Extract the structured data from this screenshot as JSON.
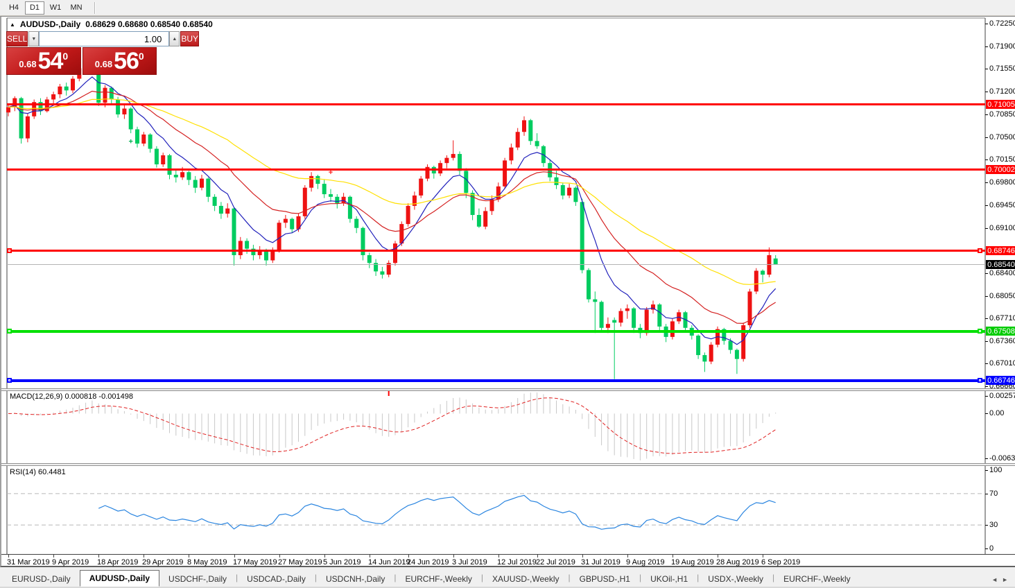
{
  "toolbar": {
    "timeframes": [
      {
        "label": "H4",
        "active": false
      },
      {
        "label": "D1",
        "active": true
      },
      {
        "label": "W1",
        "active": false
      },
      {
        "label": "MN",
        "active": false
      }
    ]
  },
  "title": {
    "collapse_arrow": "▲",
    "symbol": "AUDUSD-,Daily",
    "ohlc": "0.68629 0.68680 0.68540 0.68540"
  },
  "trade_panel": {
    "sell_label": "SELL",
    "buy_label": "BUY",
    "volume": "1.00",
    "spinner_down": "▼",
    "spinner_up": "▲",
    "sell_price": {
      "big_figure": "0.68",
      "pips": "54",
      "pipette": "0"
    },
    "buy_price": {
      "big_figure": "0.68",
      "pips": "56",
      "pipette": "0"
    }
  },
  "price_axis": {
    "ticks": [
      "0.72250",
      "0.71900",
      "0.71550",
      "0.71200",
      "0.70850",
      "0.70500",
      "0.70150",
      "0.69800",
      "0.69450",
      "0.69100",
      "0.68400",
      "0.68050",
      "0.67710",
      "0.67360",
      "0.67010",
      "0.66660"
    ],
    "badges": [
      {
        "label": "0.71005",
        "value": 0.71005,
        "bg": "#ff0000"
      },
      {
        "label": "0.70002",
        "value": 0.70002,
        "bg": "#ff0000"
      },
      {
        "label": "0.68746",
        "value": 0.68746,
        "bg": "#ff0000"
      },
      {
        "label": "0.68540",
        "value": 0.6854,
        "bg": "#000000"
      },
      {
        "label": "0.67508",
        "value": 0.67508,
        "bg": "#00cc00"
      },
      {
        "label": "0.66746",
        "value": 0.66746,
        "bg": "#0000ff"
      }
    ]
  },
  "chart_data": {
    "type": "candlestick",
    "symbol": "AUDUSD",
    "timeframe": "Daily",
    "price_range": {
      "top": 0.72325,
      "bottom": 0.66617
    },
    "up_color": "#ee1212",
    "down_color": "#00cc60",
    "x_axis_dates": [
      "31 Mar 2019",
      "9 Apr 2019",
      "18 Apr 2019",
      "29 Apr 2019",
      "8 May 2019",
      "17 May 2019",
      "27 May 2019",
      "5 Jun 2019",
      "14 Jun 2019",
      "24 Jun 2019",
      "3 Jul 2019",
      "12 Jul 2019",
      "22 Jul 2019",
      "31 Jul 2019",
      "9 Aug 2019",
      "19 Aug 2019",
      "28 Aug 2019",
      "6 Sep 2019"
    ],
    "date_tick_bar_indices": [
      0,
      7,
      14,
      21,
      28,
      35,
      42,
      49,
      56,
      62,
      69,
      76,
      82,
      89,
      96,
      103,
      110,
      117
    ],
    "candles": [
      [
        0.7088,
        0.7099,
        0.7082,
        0.7096
      ],
      [
        0.7096,
        0.7113,
        0.709,
        0.711
      ],
      [
        0.711,
        0.7112,
        0.704,
        0.7048
      ],
      [
        0.7048,
        0.7086,
        0.7042,
        0.7082
      ],
      [
        0.7082,
        0.7108,
        0.7078,
        0.7104
      ],
      [
        0.7104,
        0.711,
        0.7084,
        0.709
      ],
      [
        0.709,
        0.7112,
        0.7088,
        0.7108
      ],
      [
        0.7108,
        0.712,
        0.71,
        0.7116
      ],
      [
        0.7116,
        0.7132,
        0.711,
        0.7128
      ],
      [
        0.7128,
        0.7134,
        0.7114,
        0.7122
      ],
      [
        0.7122,
        0.7144,
        0.7118,
        0.714
      ],
      [
        0.714,
        0.716,
        0.7136,
        0.7156
      ],
      [
        0.7156,
        0.7176,
        0.715,
        0.7168
      ],
      [
        0.7168,
        0.7176,
        0.7156,
        0.7172
      ],
      [
        0.7172,
        0.7174,
        0.7098,
        0.7103
      ],
      [
        0.7103,
        0.713,
        0.7096,
        0.7126
      ],
      [
        0.7126,
        0.7128,
        0.71,
        0.7108
      ],
      [
        0.7108,
        0.7112,
        0.708,
        0.7085
      ],
      [
        0.7085,
        0.71,
        0.7078,
        0.7094
      ],
      [
        0.7094,
        0.7096,
        0.7056,
        0.7062
      ],
      [
        0.7062,
        0.7066,
        0.7034,
        0.704
      ],
      [
        0.704,
        0.7058,
        0.7036,
        0.7054
      ],
      [
        0.7054,
        0.7056,
        0.7026,
        0.7032
      ],
      [
        0.7032,
        0.7036,
        0.7003,
        0.7008
      ],
      [
        0.7008,
        0.7026,
        0.7004,
        0.7022
      ],
      [
        0.7022,
        0.7024,
        0.6985,
        0.6992
      ],
      [
        0.6992,
        0.7,
        0.698,
        0.6988
      ],
      [
        0.6988,
        0.7004,
        0.6984,
        0.6996
      ],
      [
        0.6996,
        0.6998,
        0.6976,
        0.6984
      ],
      [
        0.6984,
        0.699,
        0.6964,
        0.6972
      ],
      [
        0.6972,
        0.6992,
        0.6968,
        0.6986
      ],
      [
        0.6986,
        0.6988,
        0.695,
        0.6958
      ],
      [
        0.6958,
        0.6962,
        0.6936,
        0.6944
      ],
      [
        0.6944,
        0.695,
        0.6924,
        0.6932
      ],
      [
        0.6932,
        0.6948,
        0.6926,
        0.694
      ],
      [
        0.694,
        0.6942,
        0.6852,
        0.6868
      ],
      [
        0.6868,
        0.6896,
        0.6862,
        0.689
      ],
      [
        0.689,
        0.6894,
        0.687,
        0.6878
      ],
      [
        0.6878,
        0.6884,
        0.686,
        0.6868
      ],
      [
        0.6868,
        0.6882,
        0.6862,
        0.6876
      ],
      [
        0.6876,
        0.6878,
        0.6852,
        0.686
      ],
      [
        0.686,
        0.688,
        0.6856,
        0.6874
      ],
      [
        0.6874,
        0.6922,
        0.6872,
        0.6918
      ],
      [
        0.6918,
        0.693,
        0.691,
        0.6924
      ],
      [
        0.6924,
        0.6926,
        0.6902,
        0.6908
      ],
      [
        0.6908,
        0.6932,
        0.6904,
        0.6928
      ],
      [
        0.6928,
        0.6976,
        0.6924,
        0.6972
      ],
      [
        0.6972,
        0.6996,
        0.6966,
        0.699
      ],
      [
        0.699,
        0.6992,
        0.697,
        0.6978
      ],
      [
        0.6978,
        0.6984,
        0.6956,
        0.6962
      ],
      [
        0.6962,
        0.697,
        0.695,
        0.6958
      ],
      [
        0.6958,
        0.6962,
        0.694,
        0.6948
      ],
      [
        0.6948,
        0.6964,
        0.6944,
        0.6958
      ],
      [
        0.6958,
        0.696,
        0.6918,
        0.6924
      ],
      [
        0.6924,
        0.6928,
        0.6902,
        0.691
      ],
      [
        0.691,
        0.6912,
        0.686,
        0.6868
      ],
      [
        0.6868,
        0.6872,
        0.6848,
        0.6856
      ],
      [
        0.6856,
        0.6862,
        0.6836,
        0.6843
      ],
      [
        0.6843,
        0.685,
        0.6832,
        0.6838
      ],
      [
        0.6838,
        0.686,
        0.6834,
        0.6856
      ],
      [
        0.6856,
        0.689,
        0.6852,
        0.6886
      ],
      [
        0.6886,
        0.692,
        0.6882,
        0.6916
      ],
      [
        0.6916,
        0.6948,
        0.6912,
        0.6944
      ],
      [
        0.6944,
        0.6966,
        0.6938,
        0.696
      ],
      [
        0.696,
        0.699,
        0.6956,
        0.6986
      ],
      [
        0.6986,
        0.7008,
        0.6982,
        0.7004
      ],
      [
        0.7004,
        0.7006,
        0.6986,
        0.6994
      ],
      [
        0.6994,
        0.7014,
        0.699,
        0.701
      ],
      [
        0.701,
        0.7022,
        0.7002,
        0.7018
      ],
      [
        0.7018,
        0.7045,
        0.7014,
        0.7024
      ],
      [
        0.7024,
        0.7028,
        0.6992,
        0.6998
      ],
      [
        0.6998,
        0.7002,
        0.6956,
        0.6964
      ],
      [
        0.6964,
        0.6968,
        0.6922,
        0.693
      ],
      [
        0.693,
        0.694,
        0.691,
        0.6912
      ],
      [
        0.6912,
        0.6942,
        0.6908,
        0.6936
      ],
      [
        0.6936,
        0.696,
        0.693,
        0.6954
      ],
      [
        0.6954,
        0.698,
        0.695,
        0.6974
      ],
      [
        0.6974,
        0.7018,
        0.697,
        0.7014
      ],
      [
        0.7014,
        0.704,
        0.7008,
        0.7034
      ],
      [
        0.7034,
        0.7064,
        0.703,
        0.7058
      ],
      [
        0.7058,
        0.7082,
        0.7052,
        0.7076
      ],
      [
        0.7076,
        0.7078,
        0.7038,
        0.7044
      ],
      [
        0.7044,
        0.7056,
        0.7032,
        0.7036
      ],
      [
        0.7036,
        0.7038,
        0.7004,
        0.701
      ],
      [
        0.701,
        0.7016,
        0.6982,
        0.6988
      ],
      [
        0.6988,
        0.6998,
        0.697,
        0.6976
      ],
      [
        0.6976,
        0.698,
        0.6954,
        0.696
      ],
      [
        0.696,
        0.6978,
        0.6956,
        0.6972
      ],
      [
        0.6972,
        0.6974,
        0.6944,
        0.695
      ],
      [
        0.695,
        0.6955,
        0.684,
        0.6845
      ],
      [
        0.6845,
        0.6848,
        0.6795,
        0.68
      ],
      [
        0.68,
        0.6812,
        0.6748,
        0.6796
      ],
      [
        0.6796,
        0.6798,
        0.675,
        0.6756
      ],
      [
        0.6756,
        0.6772,
        0.6748,
        0.6762
      ],
      [
        0.6768,
        0.6772,
        0.6677,
        0.6764
      ],
      [
        0.6764,
        0.6786,
        0.6758,
        0.6782
      ],
      [
        0.6782,
        0.6792,
        0.677,
        0.6786
      ],
      [
        0.6786,
        0.6788,
        0.6748,
        0.6756
      ],
      [
        0.6756,
        0.6762,
        0.674,
        0.6748
      ],
      [
        0.6748,
        0.6788,
        0.6744,
        0.6784
      ],
      [
        0.6784,
        0.6798,
        0.6778,
        0.6792
      ],
      [
        0.6792,
        0.6794,
        0.6752,
        0.6758
      ],
      [
        0.6758,
        0.6762,
        0.6734,
        0.6742
      ],
      [
        0.6742,
        0.677,
        0.6738,
        0.6766
      ],
      [
        0.6766,
        0.6784,
        0.6762,
        0.678
      ],
      [
        0.678,
        0.6782,
        0.675,
        0.6756
      ],
      [
        0.6756,
        0.676,
        0.6738,
        0.6744
      ],
      [
        0.6744,
        0.6746,
        0.6708,
        0.6714
      ],
      [
        0.6714,
        0.6718,
        0.6688,
        0.6704
      ],
      [
        0.6704,
        0.6734,
        0.67,
        0.673
      ],
      [
        0.673,
        0.6758,
        0.6726,
        0.6754
      ],
      [
        0.6754,
        0.6756,
        0.673,
        0.6736
      ],
      [
        0.6736,
        0.674,
        0.6716,
        0.6722
      ],
      [
        0.6722,
        0.6724,
        0.6685,
        0.6708
      ],
      [
        0.6708,
        0.6764,
        0.6704,
        0.676
      ],
      [
        0.676,
        0.6816,
        0.6756,
        0.6812
      ],
      [
        0.6812,
        0.6848,
        0.6808,
        0.6844
      ],
      [
        0.6844,
        0.6846,
        0.6826,
        0.6838
      ],
      [
        0.6838,
        0.688,
        0.6834,
        0.6868
      ],
      [
        0.68629,
        0.6868,
        0.6854,
        0.6854
      ]
    ],
    "moving_averages": [
      {
        "period": 8,
        "color": "#2020bb"
      },
      {
        "period": 20,
        "color": "#d42020"
      },
      {
        "period": 45,
        "color": "#ffe000"
      }
    ],
    "hlines": [
      {
        "value": 0.71005,
        "color": "#ff0000",
        "thickness": 3,
        "handles": false
      },
      {
        "value": 0.70002,
        "color": "#ff0000",
        "thickness": 3,
        "handles": false
      },
      {
        "value": 0.68746,
        "color": "#ff0000",
        "thickness": 3,
        "handles": true
      },
      {
        "value": 0.67508,
        "color": "#00e000",
        "thickness": 4,
        "handles": true
      },
      {
        "value": 0.66746,
        "color": "#0000ff",
        "thickness": 4,
        "handles": true
      }
    ],
    "current_price": {
      "value": 0.6854,
      "line_color": "#b4b4b4"
    },
    "plus_marks": [
      {
        "bar": 19,
        "value": 0.7043,
        "color": "#00b050"
      },
      {
        "bar": 50,
        "value": 0.6995,
        "color": "#ff2020"
      }
    ]
  },
  "macd": {
    "label": "MACD(12,26,9) 0.000818 -0.001498",
    "fast": 12,
    "slow": 26,
    "signal": 9,
    "axis_ticks": [
      "0.002574",
      "0.00",
      "-0.006326"
    ],
    "histogram_color": "#c8c8c8",
    "signal_color": "#e02020",
    "marker_bar": 59,
    "marker_color": "#ff0000"
  },
  "rsi": {
    "label": "RSI(14) 60.4481",
    "period": 14,
    "axis_ticks": [
      "100",
      "70",
      "30",
      "0"
    ],
    "levels": [
      70,
      30
    ],
    "level_color": "#b8b8b8",
    "line_color": "#2a85e0"
  },
  "tab_bar": {
    "tabs": [
      {
        "label": "EURUSD-,Daily",
        "active": false
      },
      {
        "label": "AUDUSD-,Daily",
        "active": true
      },
      {
        "label": "USDCHF-,Daily",
        "active": false
      },
      {
        "label": "USDCAD-,Daily",
        "active": false
      },
      {
        "label": "USDCNH-,Daily",
        "active": false
      },
      {
        "label": "EURCHF-,Weekly",
        "active": false
      },
      {
        "label": "XAUUSD-,Weekly",
        "active": false
      },
      {
        "label": "GBPUSD-,H1",
        "active": false
      },
      {
        "label": "UKOil-,H1",
        "active": false
      },
      {
        "label": "USDX-,Weekly",
        "active": false
      },
      {
        "label": "EURCHF-,Weekly",
        "active": false
      }
    ],
    "nav_left": "◄",
    "nav_right": "►"
  }
}
